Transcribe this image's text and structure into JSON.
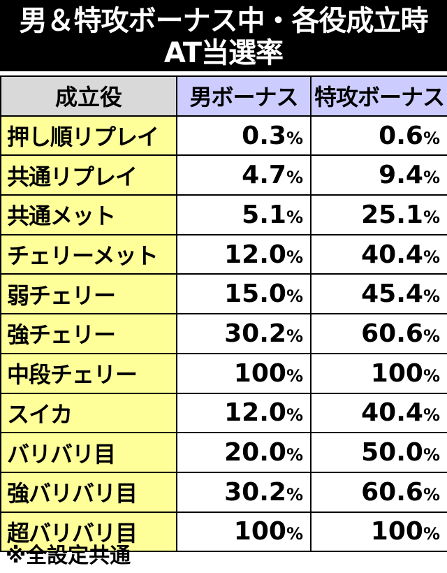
{
  "title": {
    "line1": "男＆特攻ボーナス中・各役成立時",
    "line2": "AT当選率"
  },
  "table": {
    "headers": [
      "成立役",
      "男ボーナス",
      "特攻ボーナス"
    ],
    "unit": "%",
    "rows": [
      {
        "role": "押し順リプレイ",
        "otoko": "0.3",
        "tokko": "0.6"
      },
      {
        "role": "共通リプレイ",
        "otoko": "4.7",
        "tokko": "9.4"
      },
      {
        "role": "共通メット",
        "otoko": "5.1",
        "tokko": "25.1"
      },
      {
        "role": "チェリーメット",
        "otoko": "12.0",
        "tokko": "40.4"
      },
      {
        "role": "弱チェリー",
        "otoko": "15.0",
        "tokko": "45.4"
      },
      {
        "role": "強チェリー",
        "otoko": "30.2",
        "tokko": "60.6"
      },
      {
        "role": "中段チェリー",
        "otoko": "100",
        "tokko": "100"
      },
      {
        "role": "スイカ",
        "otoko": "12.0",
        "tokko": "40.4"
      },
      {
        "role": "バリバリ目",
        "otoko": "20.0",
        "tokko": "50.0"
      },
      {
        "role": "強バリバリ目",
        "otoko": "30.2",
        "tokko": "60.6"
      },
      {
        "role": "超バリバリ目",
        "otoko": "100",
        "tokko": "100"
      }
    ]
  },
  "footnote": "※全設定共通",
  "colors": {
    "title_bg": "#000000",
    "header_role_bg": "#d9d9d9",
    "header_bonus_bg": "#ccccff",
    "role_cell_bg": "#ffff99",
    "value_cell_bg": "#ffffff"
  }
}
